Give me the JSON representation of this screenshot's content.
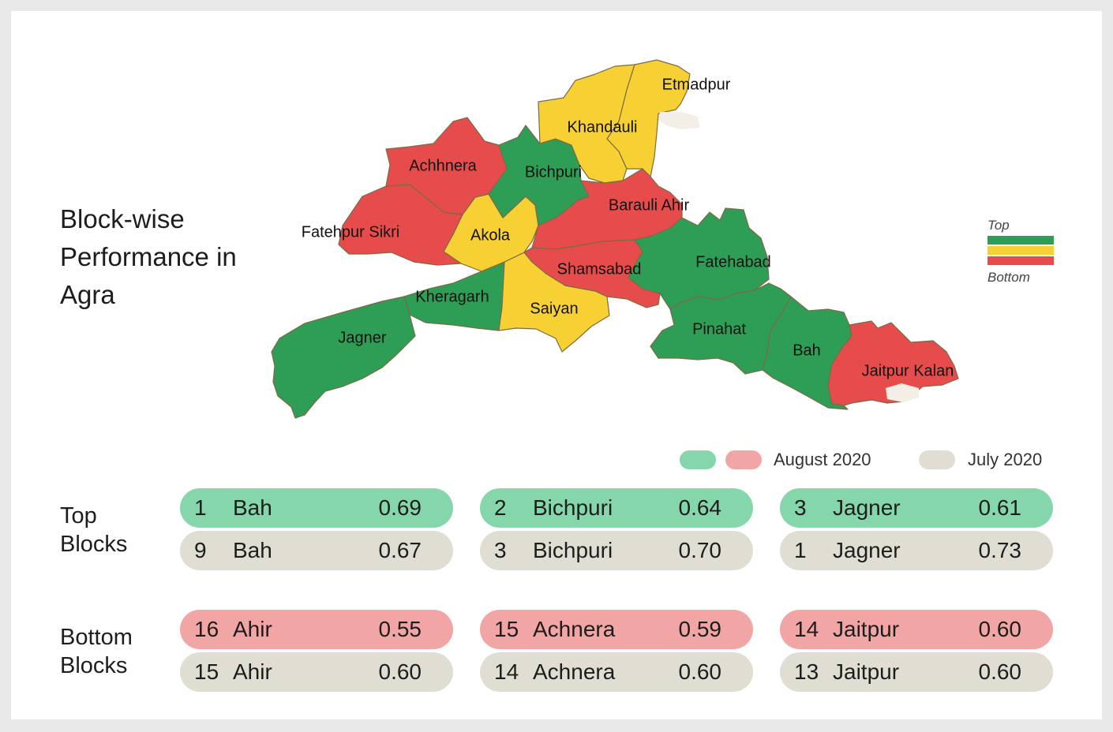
{
  "title": "Block-wise Performance in Agra",
  "colors": {
    "top": "#2e9e56",
    "middle": "#f7d033",
    "bottom": "#e74c4c",
    "aug_green": "#86d6ab",
    "aug_red": "#f2a5a5",
    "july": "#e0ddd3"
  },
  "scale": {
    "top_label": "Top",
    "bottom_label": "Bottom"
  },
  "map": {
    "blocks": [
      {
        "name": "Etmadpur",
        "rank": "middle"
      },
      {
        "name": "Khandauli",
        "rank": "middle"
      },
      {
        "name": "Achhnera",
        "rank": "bottom"
      },
      {
        "name": "Bichpuri",
        "rank": "top"
      },
      {
        "name": "Barauli Ahir",
        "rank": "bottom"
      },
      {
        "name": "Fatehpur Sikri",
        "rank": "bottom"
      },
      {
        "name": "Akola",
        "rank": "middle"
      },
      {
        "name": "Shamsabad",
        "rank": "bottom"
      },
      {
        "name": "Fatehabad",
        "rank": "top"
      },
      {
        "name": "Kheragarh",
        "rank": "top"
      },
      {
        "name": "Saiyan",
        "rank": "middle"
      },
      {
        "name": "Jagner",
        "rank": "top"
      },
      {
        "name": "Pinahat",
        "rank": "top"
      },
      {
        "name": "Bah",
        "rank": "top"
      },
      {
        "name": "Jaitpur Kalan",
        "rank": "bottom"
      }
    ]
  },
  "legend": {
    "august": "August 2020",
    "july": "July 2020"
  },
  "sections": [
    {
      "label_line1": "Top",
      "label_line2": "Blocks",
      "august": [
        {
          "rank": "1",
          "name": "Bah",
          "score": "0.69"
        },
        {
          "rank": "2",
          "name": "Bichpuri",
          "score": "0.64"
        },
        {
          "rank": "3",
          "name": "Jagner",
          "score": "0.61"
        }
      ],
      "july": [
        {
          "rank": "9",
          "name": "Bah",
          "score": "0.67"
        },
        {
          "rank": "3",
          "name": "Bichpuri",
          "score": "0.70"
        },
        {
          "rank": "1",
          "name": "Jagner",
          "score": "0.73"
        }
      ]
    },
    {
      "label_line1": "Bottom",
      "label_line2": "Blocks",
      "august": [
        {
          "rank": "16",
          "name": "Ahir",
          "score": "0.55"
        },
        {
          "rank": "15",
          "name": "Achnera",
          "score": "0.59"
        },
        {
          "rank": "14",
          "name": "Jaitpur",
          "score": "0.60"
        }
      ],
      "july": [
        {
          "rank": "15",
          "name": "Ahir",
          "score": "0.60"
        },
        {
          "rank": "14",
          "name": "Achnera",
          "score": "0.60"
        },
        {
          "rank": "13",
          "name": "Jaitpur",
          "score": "0.60"
        }
      ]
    }
  ]
}
